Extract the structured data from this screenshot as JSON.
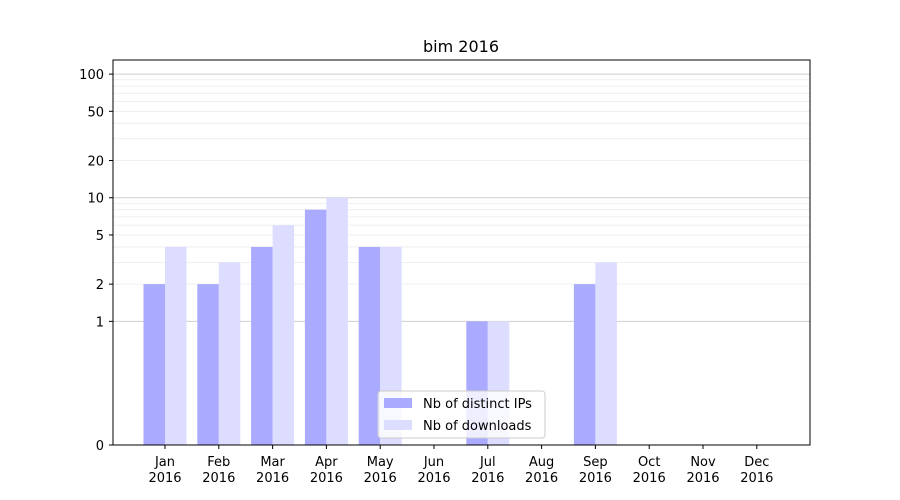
{
  "chart_data": {
    "type": "bar",
    "title": "bim 2016",
    "xlabel": "",
    "ylabel": "",
    "y_scale": "symlog",
    "ylim": [
      0,
      130
    ],
    "y_ticks": [
      0,
      1,
      2,
      5,
      10,
      20,
      50,
      100
    ],
    "grid": true,
    "legend_placement": "bottom-center",
    "categories": [
      "Jan\n2016",
      "Feb\n2016",
      "Mar\n2016",
      "Apr\n2016",
      "May\n2016",
      "Jun\n2016",
      "Jul\n2016",
      "Aug\n2016",
      "Sep\n2016",
      "Oct\n2016",
      "Nov\n2016",
      "Dec\n2016"
    ],
    "series": [
      {
        "name": "Nb of distinct IPs",
        "color": "#aaaaff",
        "values": [
          2,
          2,
          4,
          8,
          4,
          0,
          1,
          0,
          2,
          0,
          0,
          0
        ]
      },
      {
        "name": "Nb of downloads",
        "color": "#ddddff",
        "values": [
          4,
          3,
          6,
          10,
          4,
          0,
          1,
          0,
          3,
          0,
          0,
          0
        ]
      }
    ]
  }
}
